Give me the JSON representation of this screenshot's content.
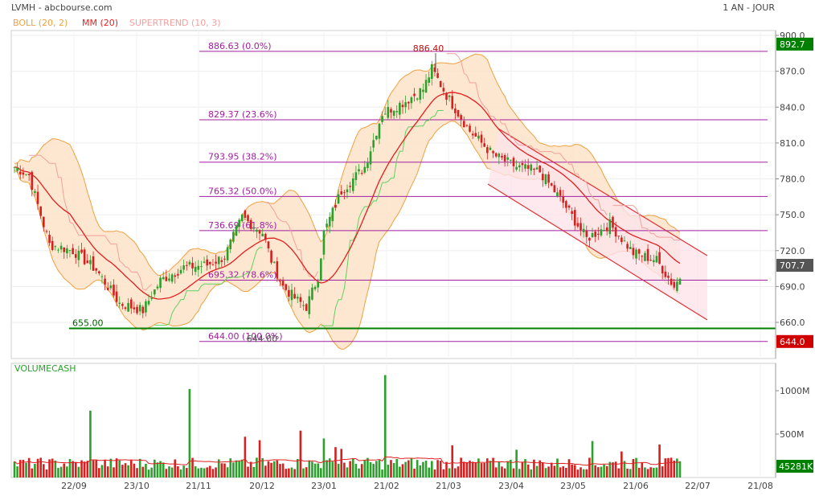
{
  "header": {
    "title": "LVMH - abcbourse.com",
    "period": "1 AN - JOUR"
  },
  "colors": {
    "boll": "#f0a040",
    "boll_fill": "#fde3c8",
    "mm": "#e02020",
    "supertrend_up": "#60d060",
    "supertrend_down": "#f4a0a0",
    "fib": "#a020a0",
    "support": "#008000",
    "up_candle": "#2ca02c",
    "down_candle": "#d62020",
    "channel": "#e03030",
    "channel_fill": "#fce4ea"
  },
  "chart_data": [
    {
      "type": "candlestick",
      "legend": [
        "BOLL (20, 2)",
        "MM (20)",
        "SUPERTREND (10, 3)"
      ],
      "ylim": [
        640,
        905
      ],
      "y_ticks": [
        "900.0",
        "870.0",
        "840.0",
        "810.0",
        "780.0",
        "750.0",
        "720.0",
        "690.0",
        "660.0"
      ],
      "x_ticks": [
        "22/09",
        "23/10",
        "21/11",
        "20/12",
        "23/01",
        "21/02",
        "21/03",
        "23/04",
        "23/05",
        "21/06",
        "22/07",
        "21/08"
      ],
      "anchor_closes": [
        [
          0,
          790
        ],
        [
          5,
          783
        ],
        [
          12,
          725
        ],
        [
          20,
          720
        ],
        [
          28,
          704
        ],
        [
          36,
          676
        ],
        [
          44,
          670
        ],
        [
          50,
          695
        ],
        [
          58,
          706
        ],
        [
          66,
          708
        ],
        [
          72,
          715
        ],
        [
          78,
          748
        ],
        [
          85,
          735
        ],
        [
          88,
          712
        ],
        [
          92,
          690
        ],
        [
          97,
          678
        ],
        [
          100,
          673
        ],
        [
          104,
          698
        ],
        [
          106,
          735
        ],
        [
          112,
          770
        ],
        [
          120,
          790
        ],
        [
          126,
          835
        ],
        [
          134,
          845
        ],
        [
          140,
          855
        ],
        [
          143,
          872
        ],
        [
          148,
          850
        ],
        [
          156,
          820
        ],
        [
          164,
          800
        ],
        [
          172,
          790
        ],
        [
          180,
          786
        ],
        [
          188,
          760
        ],
        [
          196,
          730
        ],
        [
          204,
          742
        ],
        [
          212,
          718
        ],
        [
          220,
          712
        ],
        [
          226,
          690
        ],
        [
          228,
          698
        ]
      ],
      "fib_levels": [
        {
          "label": "886.63  (0.0%)",
          "value": 886.63
        },
        {
          "label": "829.37  (23.6%)",
          "value": 829.37
        },
        {
          "label": "793.95  (38.2%)",
          "value": 793.95
        },
        {
          "label": "765.32  (50.0%)",
          "value": 765.32
        },
        {
          "label": "736.69  (61.8%)",
          "value": 736.69
        },
        {
          "label": "695.32  (78.6%)",
          "value": 695.32
        },
        {
          "label": "644.00  (100.0%)",
          "value": 644.0
        }
      ],
      "support": {
        "label": "655.00",
        "value": 655.0
      },
      "annotations": [
        {
          "label": "886.40",
          "value": 886.4
        },
        {
          "label": "644.00",
          "value": 644.0
        }
      ],
      "price_badges": [
        {
          "label": "892.7",
          "value": 892.7,
          "color": "#008000"
        },
        {
          "label": "707.7",
          "value": 707.7,
          "color": "#555555"
        },
        {
          "label": "644.0",
          "value": 644.0,
          "color": "#d00000"
        }
      ]
    },
    {
      "type": "bar",
      "title": "VOLUMECASH",
      "ylim": [
        0,
        1250
      ],
      "y_ticks": [
        "1000M",
        "500M"
      ],
      "last_value_badge": "45281K",
      "volume_spikes": [
        [
          26,
          770
        ],
        [
          60,
          1020
        ],
        [
          79,
          470
        ],
        [
          84,
          430
        ],
        [
          98,
          540
        ],
        [
          106,
          450
        ],
        [
          127,
          1180
        ],
        [
          110,
          350
        ],
        [
          112,
          330
        ],
        [
          150,
          370
        ],
        [
          172,
          320
        ],
        [
          198,
          420
        ],
        [
          208,
          300
        ],
        [
          221,
          380
        ]
      ]
    }
  ]
}
